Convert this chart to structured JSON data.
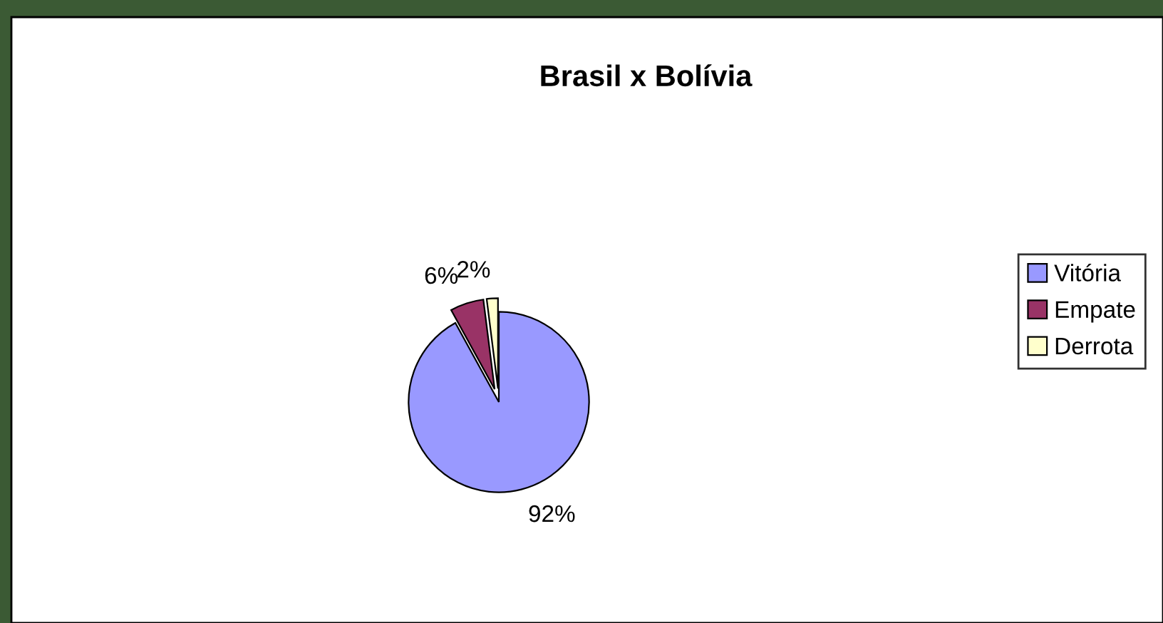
{
  "chart_data": {
    "type": "pie",
    "title": "Brasil x Bolívia",
    "categories": [
      "Vitória",
      "Empate",
      "Derrota"
    ],
    "values": [
      92,
      6,
      2
    ],
    "value_labels": [
      "92%",
      "6%",
      "2%"
    ],
    "colors": [
      "#9999ff",
      "#993366",
      "#ffffcc"
    ],
    "legend": "right"
  }
}
